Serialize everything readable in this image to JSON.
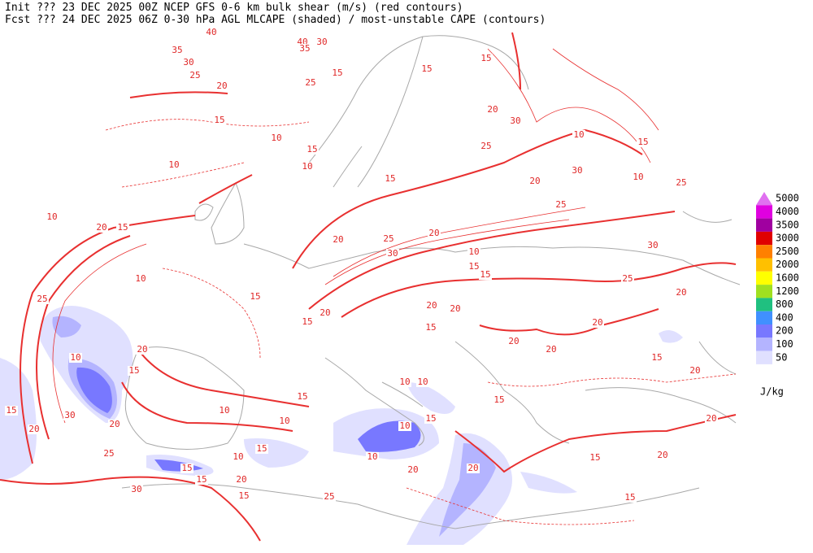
{
  "header": {
    "line1": "Init  ??? 23 DEC 2025 00Z  NCEP GFS 0-6 km bulk shear (m/s) (red contours)",
    "line2": "Fcst ??? 24 DEC 2025 06Z  0-30 hPa AGL MLCAPE (shaded) / most-unstable CAPE (contours)"
  },
  "legend": {
    "unit": "J/kg",
    "levels": [
      {
        "value": 5000,
        "color": "#e070f0"
      },
      {
        "value": 4000,
        "color": "#e000e0"
      },
      {
        "value": 3500,
        "color": "#a000a0"
      },
      {
        "value": 3000,
        "color": "#e00000"
      },
      {
        "value": 2500,
        "color": "#ff8000"
      },
      {
        "value": 2000,
        "color": "#ffc000"
      },
      {
        "value": 1600,
        "color": "#ffff00"
      },
      {
        "value": 1200,
        "color": "#a0e020"
      },
      {
        "value": 800,
        "color": "#20c080"
      },
      {
        "value": 400,
        "color": "#4090ff"
      },
      {
        "value": 200,
        "color": "#7878ff"
      },
      {
        "value": 100,
        "color": "#b4b4ff"
      },
      {
        "value": 50,
        "color": "#e0e0ff"
      }
    ]
  },
  "contour_labels": [
    40,
    40,
    30,
    35,
    35,
    30,
    25,
    20,
    25,
    15,
    15,
    15,
    20,
    30,
    25,
    10,
    15,
    30,
    20,
    10,
    25,
    25,
    15,
    10,
    15,
    10,
    10,
    15,
    20,
    25,
    20,
    30,
    10,
    15,
    15,
    30,
    25,
    20,
    10,
    20,
    15,
    10,
    25,
    15,
    20,
    15,
    20,
    20,
    15,
    20,
    20,
    20,
    15,
    20,
    10,
    20,
    15,
    15,
    20,
    30,
    20,
    25,
    15,
    10,
    15,
    20,
    15,
    30,
    10,
    10,
    20,
    20,
    15,
    15,
    25,
    15,
    10,
    10,
    10,
    10,
    20,
    20,
    15,
    15,
    15
  ]
}
